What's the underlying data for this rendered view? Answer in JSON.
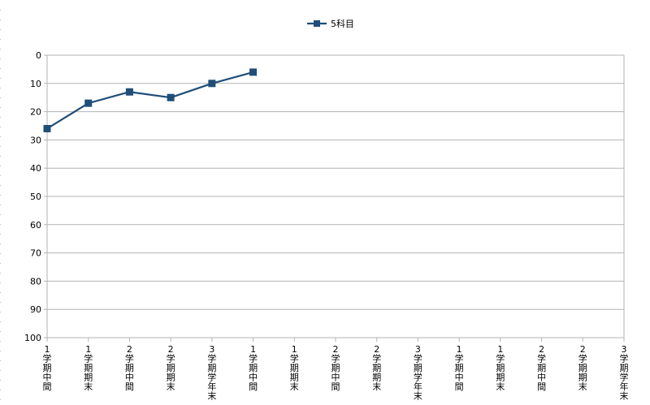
{
  "chart_data": {
    "type": "line",
    "title": "",
    "xlabel": "",
    "ylabel": "",
    "y_reversed": true,
    "ylim": [
      0,
      100
    ],
    "y_ticks": [
      0,
      10,
      20,
      30,
      40,
      50,
      60,
      70,
      80,
      90,
      100
    ],
    "grid": "horizontal",
    "legend_position": "top",
    "categories": [
      [
        "1",
        "学",
        "期",
        "中",
        "間"
      ],
      [
        "1",
        "学",
        "期",
        "期",
        "末"
      ],
      [
        "2",
        "学",
        "期",
        "中",
        "間"
      ],
      [
        "2",
        "学",
        "期",
        "期",
        "末"
      ],
      [
        "3",
        "学",
        "期",
        "学",
        "年",
        "末"
      ],
      [
        "1",
        "学",
        "期",
        "中",
        "間"
      ],
      [
        "1",
        "学",
        "期",
        "期",
        "末"
      ],
      [
        "2",
        "学",
        "期",
        "中",
        "間"
      ],
      [
        "2",
        "学",
        "期",
        "期",
        "末"
      ],
      [
        "3",
        "学",
        "期",
        "学",
        "年",
        "末"
      ],
      [
        "1",
        "学",
        "期",
        "中",
        "間"
      ],
      [
        "1",
        "学",
        "期",
        "期",
        "末"
      ],
      [
        "2",
        "学",
        "期",
        "中",
        "間"
      ],
      [
        "2",
        "学",
        "期",
        "期",
        "末"
      ],
      [
        "3",
        "学",
        "期",
        "学",
        "年",
        "末"
      ]
    ],
    "series": [
      {
        "name": "5科目",
        "color": "#1f4e79",
        "marker": "square",
        "values": [
          26,
          17,
          13,
          15,
          10,
          6,
          null,
          null,
          null,
          null,
          null,
          null,
          null,
          null,
          null
        ]
      }
    ]
  }
}
